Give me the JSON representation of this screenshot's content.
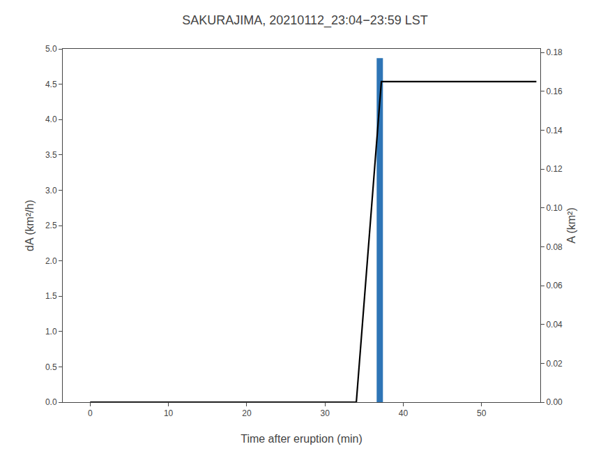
{
  "chart_data": {
    "type": "bar",
    "title": "SAKURAJIMA, 20210112_23:04−23:59 LST",
    "xlabel": "Time after eruption (min)",
    "ylabel": "dA (km²/h)",
    "y2label": "A (km²)",
    "series": [
      {
        "type": "bar",
        "color": "#2e75b6",
        "x": [
          37.0
        ],
        "values": [
          4.87
        ]
      },
      {
        "type": "line",
        "axis": "y2",
        "color": "#000000",
        "line_style": "solid",
        "x": [
          0,
          34.0,
          37.2,
          38.5,
          57
        ],
        "values": [
          0,
          0,
          0.165,
          0.165,
          0.165
        ]
      }
    ],
    "xlim": [
      -3.5,
      57.5
    ],
    "xticks": [
      0,
      10,
      20,
      30,
      40,
      50
    ],
    "ylim": [
      0,
      5
    ],
    "yticks": [
      {
        "value": 0,
        "label": "0.0"
      },
      0.5,
      {
        "value": 1.0,
        "label": "1.0"
      },
      1.5,
      {
        "value": 2.0,
        "label": "2.0"
      },
      2.5,
      {
        "value": 3.0,
        "label": "3.0"
      },
      3.5,
      {
        "value": 4.0,
        "label": "4.0"
      },
      4.5,
      {
        "value": 5.0,
        "label": "5.0"
      }
    ],
    "y2lim": [
      0,
      0.18182
    ],
    "y2ticks": [
      {
        "value": 0,
        "label": "0.00"
      },
      0.02,
      0.04,
      0.06,
      0.08,
      {
        "value": 0.1,
        "label": "0.10"
      },
      0.12,
      0.14,
      0.16,
      0.18
    ],
    "grid": false
  }
}
